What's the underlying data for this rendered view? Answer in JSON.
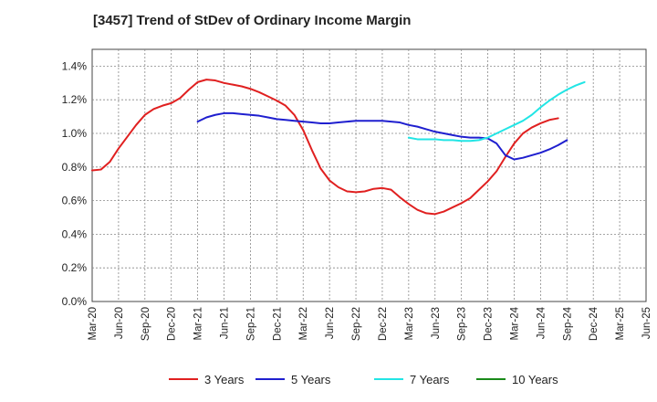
{
  "chart_data": {
    "type": "line",
    "title": "[3457]  Trend of StDev of Ordinary Income Margin",
    "xlabel": "",
    "ylabel": "",
    "ylim": [
      0,
      1.5
    ],
    "yticks": [
      "0.0%",
      "0.2%",
      "0.4%",
      "0.6%",
      "0.8%",
      "1.0%",
      "1.2%",
      "1.4%"
    ],
    "ytick_values": [
      0,
      0.2,
      0.4,
      0.6,
      0.8,
      1.0,
      1.2,
      1.4
    ],
    "xticks": [
      "Mar-20",
      "Jun-20",
      "Sep-20",
      "Dec-20",
      "Mar-21",
      "Jun-21",
      "Sep-21",
      "Dec-21",
      "Mar-22",
      "Jun-22",
      "Sep-22",
      "Dec-22",
      "Mar-23",
      "Jun-23",
      "Sep-23",
      "Dec-23",
      "Mar-24",
      "Jun-24",
      "Sep-24",
      "Dec-24",
      "Mar-25",
      "Jun-25"
    ],
    "grid": true,
    "legend_position": "bottom",
    "series": [
      {
        "name": "3 Years",
        "color": "#e02020",
        "start": "Mar-20",
        "values": [
          0.78,
          0.785,
          0.83,
          0.91,
          0.98,
          1.05,
          1.11,
          1.145,
          1.165,
          1.18,
          1.21,
          1.26,
          1.305,
          1.32,
          1.315,
          1.3,
          1.29,
          1.28,
          1.265,
          1.245,
          1.22,
          1.195,
          1.165,
          1.11,
          1.02,
          0.9,
          0.79,
          0.72,
          0.68,
          0.655,
          0.65,
          0.655,
          0.67,
          0.675,
          0.665,
          0.62,
          0.58,
          0.545,
          0.525,
          0.52,
          0.535,
          0.56,
          0.585,
          0.615,
          0.665,
          0.715,
          0.775,
          0.86,
          0.94,
          1.0,
          1.035,
          1.06,
          1.08,
          1.09
        ]
      },
      {
        "name": "5 Years",
        "color": "#1f1fcf",
        "start": "Mar-21",
        "values": [
          1.07,
          1.095,
          1.11,
          1.12,
          1.12,
          1.115,
          1.11,
          1.105,
          1.095,
          1.085,
          1.08,
          1.075,
          1.07,
          1.065,
          1.06,
          1.06,
          1.065,
          1.07,
          1.075,
          1.075,
          1.075,
          1.075,
          1.07,
          1.065,
          1.05,
          1.04,
          1.025,
          1.01,
          1.0,
          0.99,
          0.98,
          0.975,
          0.975,
          0.97,
          0.94,
          0.87,
          0.845,
          0.855,
          0.87,
          0.885,
          0.905,
          0.93,
          0.96
        ]
      },
      {
        "name": "7 Years",
        "color": "#22e5e5",
        "start": "Mar-23",
        "values": [
          0.975,
          0.965,
          0.965,
          0.965,
          0.96,
          0.96,
          0.955,
          0.955,
          0.96,
          0.975,
          1.0,
          1.025,
          1.05,
          1.075,
          1.11,
          1.155,
          1.195,
          1.23,
          1.26,
          1.285,
          1.305
        ]
      },
      {
        "name": "10 Years",
        "color": "#1a8a1a",
        "start": "Mar-25",
        "values": []
      }
    ]
  }
}
